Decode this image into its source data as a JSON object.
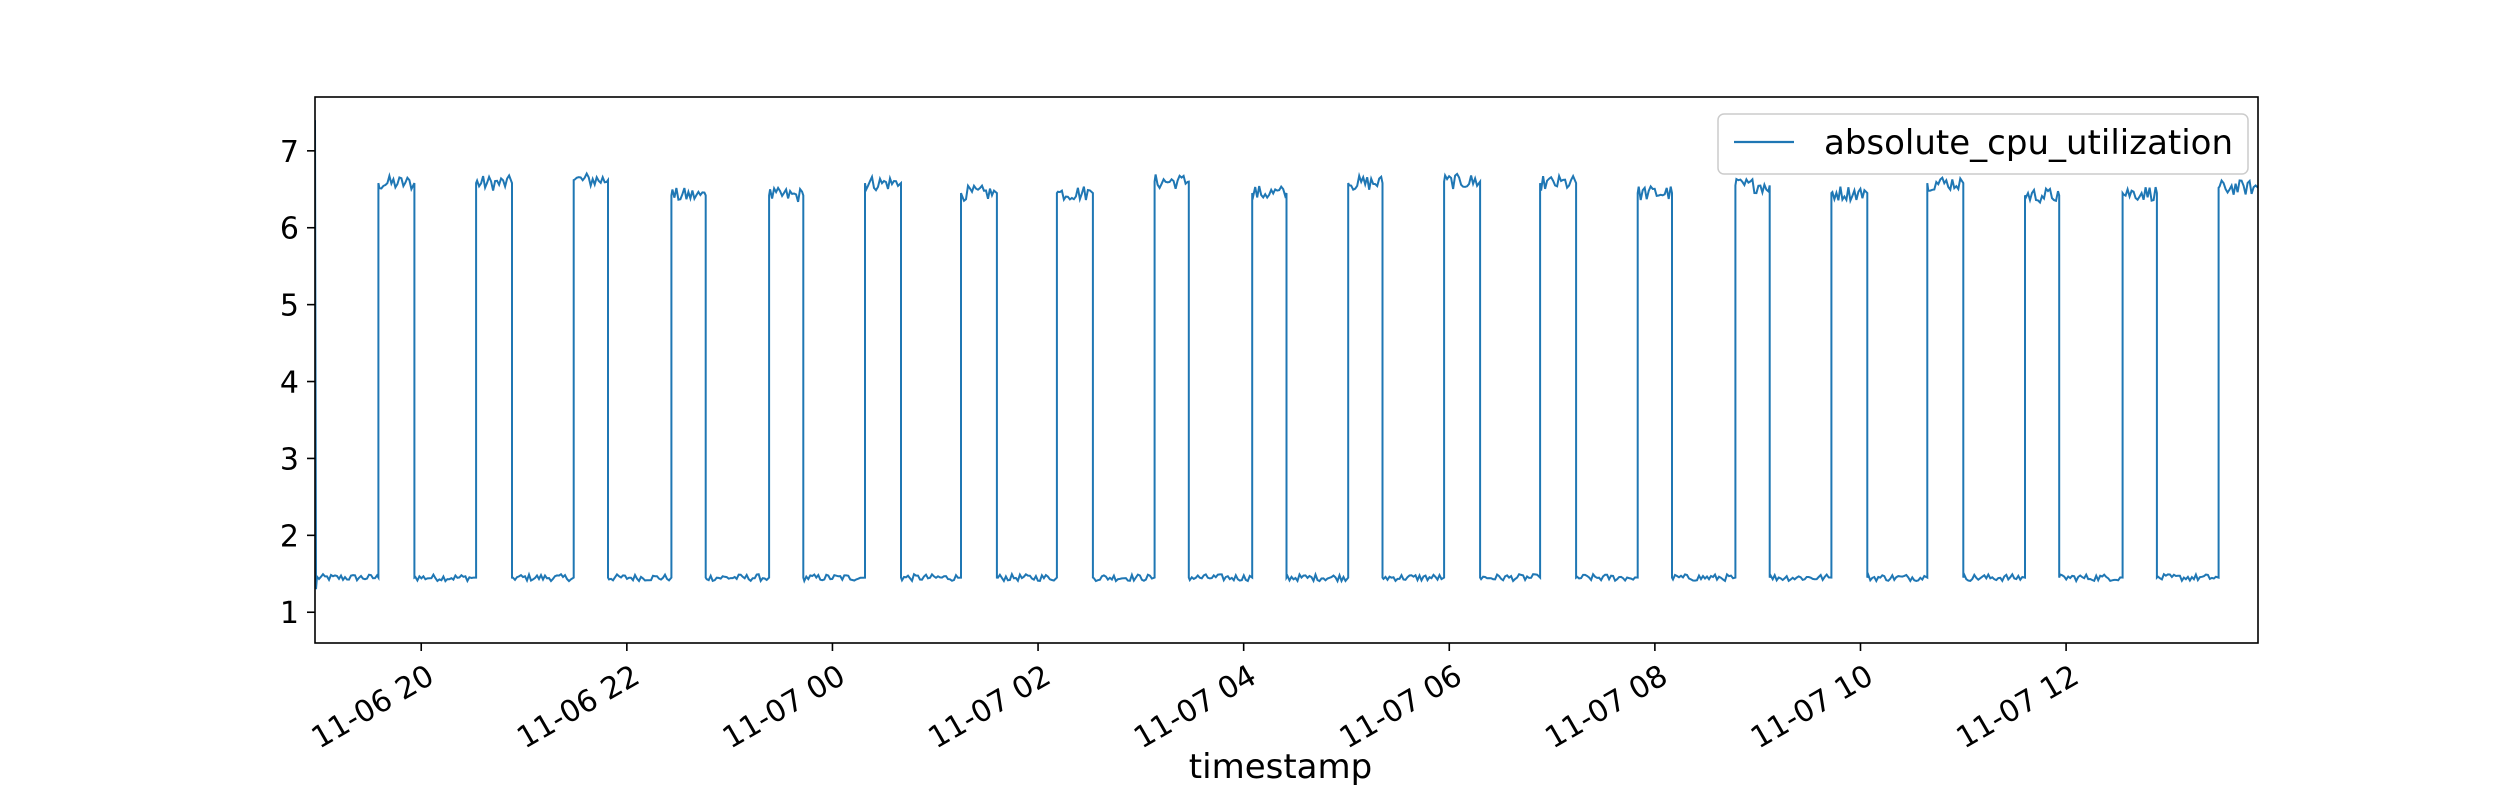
{
  "chart_data": {
    "type": "line",
    "xlabel": "timestamp",
    "ylabel": "",
    "title": "",
    "x_range": [
      "2023-11-06 18:58",
      "2023-11-07 13:52"
    ],
    "ylim": [
      0.6,
      7.7
    ],
    "yticks": [
      1,
      2,
      3,
      4,
      5,
      6,
      7
    ],
    "xticks": [
      {
        "t": "2023-11-06 20:00",
        "label": "11-06 20"
      },
      {
        "t": "2023-11-06 22:00",
        "label": "11-06 22"
      },
      {
        "t": "2023-11-07 00:00",
        "label": "11-07 00"
      },
      {
        "t": "2023-11-07 02:00",
        "label": "11-07 02"
      },
      {
        "t": "2023-11-07 04:00",
        "label": "11-07 04"
      },
      {
        "t": "2023-11-07 06:00",
        "label": "11-07 06"
      },
      {
        "t": "2023-11-07 08:00",
        "label": "11-07 08"
      },
      {
        "t": "2023-11-07 10:00",
        "label": "11-07 10"
      },
      {
        "t": "2023-11-07 12:00",
        "label": "11-07 12"
      }
    ],
    "grid": false,
    "legend_position": "top-right",
    "baseline_level": 1.45,
    "series": [
      {
        "name": "absolute_cpu_utilization",
        "color": "#1f77b4",
        "segments": [
          {
            "start": "2023-11-06 19:35",
            "end": "2023-11-06 19:56",
            "level": 6.58
          },
          {
            "start": "2023-11-06 20:32",
            "end": "2023-11-06 20:53",
            "level": 6.58
          },
          {
            "start": "2023-11-06 21:29",
            "end": "2023-11-06 21:49",
            "level": 6.62
          },
          {
            "start": "2023-11-06 22:26",
            "end": "2023-11-06 22:46",
            "level": 6.42
          },
          {
            "start": "2023-11-06 23:23",
            "end": "2023-11-06 23:43",
            "level": 6.42
          },
          {
            "start": "2023-11-07 00:19",
            "end": "2023-11-07 00:40",
            "level": 6.58
          },
          {
            "start": "2023-11-07 01:15",
            "end": "2023-11-07 01:36",
            "level": 6.45
          },
          {
            "start": "2023-11-07 02:11",
            "end": "2023-11-07 02:32",
            "level": 6.45
          },
          {
            "start": "2023-11-07 03:08",
            "end": "2023-11-07 03:28",
            "level": 6.6
          },
          {
            "start": "2023-11-07 04:05",
            "end": "2023-11-07 04:25",
            "level": 6.45
          },
          {
            "start": "2023-11-07 05:01",
            "end": "2023-11-07 05:21",
            "level": 6.58
          },
          {
            "start": "2023-11-07 05:57",
            "end": "2023-11-07 06:18",
            "level": 6.6
          },
          {
            "start": "2023-11-07 06:53",
            "end": "2023-11-07 07:14",
            "level": 6.58
          },
          {
            "start": "2023-11-07 07:50",
            "end": "2023-11-07 08:10",
            "level": 6.45
          },
          {
            "start": "2023-11-07 08:47",
            "end": "2023-11-07 09:07",
            "level": 6.55
          },
          {
            "start": "2023-11-07 09:43",
            "end": "2023-11-07 10:04",
            "level": 6.45
          },
          {
            "start": "2023-11-07 10:39",
            "end": "2023-11-07 11:00",
            "level": 6.58
          },
          {
            "start": "2023-11-07 11:36",
            "end": "2023-11-07 11:56",
            "level": 6.42
          },
          {
            "start": "2023-11-07 12:33",
            "end": "2023-11-07 12:53",
            "level": 6.45
          },
          {
            "start": "2023-11-07 13:29",
            "end": "2023-11-07 13:52",
            "level": 6.52
          }
        ]
      }
    ]
  }
}
